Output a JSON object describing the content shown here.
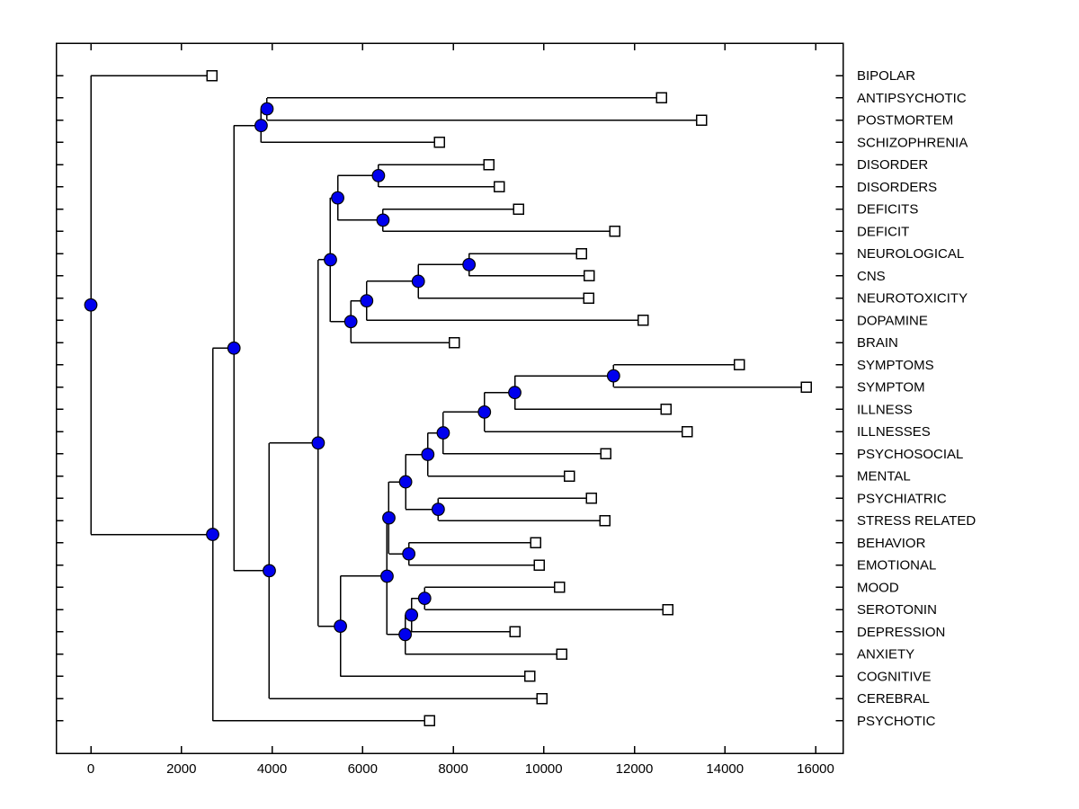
{
  "chart_data": {
    "type": "dendrogram",
    "subtype": "phylogenetic-tree",
    "orientation": "horizontal, root at left, leaves at right",
    "title": "",
    "xlabel": "",
    "ylabel": "",
    "grid": false,
    "legend": "none",
    "x_axis": {
      "ticks": [
        0,
        2000,
        4000,
        6000,
        8000,
        10000,
        12000,
        14000,
        16000
      ]
    },
    "markers": {
      "internal_node": "filled-circle",
      "leaf_node": "open-square"
    },
    "colors": {
      "branch_line": "#000000",
      "internal_node_fill": "#0000ee",
      "internal_node_edge": "#000000",
      "leaf_node_fill": "#ffffff",
      "leaf_node_edge": "#000000",
      "axis_box": "#000000",
      "text": "#000000",
      "background": "#ffffff"
    },
    "leaves_top_to_bottom": [
      {
        "label": "BIPOLAR",
        "distance": 2670
      },
      {
        "label": "ANTIPSYCHOTIC",
        "distance": 12600
      },
      {
        "label": "POSTMORTEM",
        "distance": 13480
      },
      {
        "label": "SCHIZOPHRENIA",
        "distance": 7700
      },
      {
        "label": "DISORDER",
        "distance": 8790
      },
      {
        "label": "DISORDERS",
        "distance": 9020
      },
      {
        "label": "DEFICITS",
        "distance": 9440
      },
      {
        "label": "DEFICIT",
        "distance": 11570
      },
      {
        "label": "NEUROLOGICAL",
        "distance": 10830
      },
      {
        "label": "CNS",
        "distance": 11000
      },
      {
        "label": "NEUROTOXICITY",
        "distance": 10990
      },
      {
        "label": "DOPAMINE",
        "distance": 12190
      },
      {
        "label": "BRAIN",
        "distance": 8020
      },
      {
        "label": "SYMPTOMS",
        "distance": 14320
      },
      {
        "label": "SYMPTOM",
        "distance": 15800
      },
      {
        "label": "ILLNESS",
        "distance": 12700
      },
      {
        "label": "ILLNESSES",
        "distance": 13170
      },
      {
        "label": "PSYCHOSOCIAL",
        "distance": 11370
      },
      {
        "label": "MENTAL",
        "distance": 10570
      },
      {
        "label": "PSYCHIATRIC",
        "distance": 11050
      },
      {
        "label": "STRESS RELATED",
        "distance": 11350
      },
      {
        "label": "BEHAVIOR",
        "distance": 9820
      },
      {
        "label": "EMOTIONAL",
        "distance": 9900
      },
      {
        "label": "MOOD",
        "distance": 10350
      },
      {
        "label": "SEROTONIN",
        "distance": 12740
      },
      {
        "label": "DEPRESSION",
        "distance": 9360
      },
      {
        "label": "ANXIETY",
        "distance": 10400
      },
      {
        "label": "COGNITIVE",
        "distance": 9690
      },
      {
        "label": "CEREBRAL",
        "distance": 9960
      },
      {
        "label": "PSYCHOTIC",
        "distance": 7480
      }
    ],
    "tree": {
      "d": 0,
      "children": [
        {
          "label": "BIPOLAR",
          "d": 2670
        },
        {
          "d": 2690,
          "children": [
            {
              "d": 3160,
              "children": [
                {
                  "d": 3760,
                  "children": [
                    {
                      "d": 3890,
                      "children": [
                        {
                          "label": "ANTIPSYCHOTIC",
                          "d": 12600
                        },
                        {
                          "label": "POSTMORTEM",
                          "d": 13480
                        }
                      ]
                    },
                    {
                      "label": "SCHIZOPHRENIA",
                      "d": 7700
                    }
                  ]
                },
                {
                  "d": 3940,
                  "children": [
                    {
                      "d": 5020,
                      "children": [
                        {
                          "d": 5290,
                          "children": [
                            {
                              "d": 5450,
                              "children": [
                                {
                                  "d": 6350,
                                  "children": [
                                    {
                                      "label": "DISORDER",
                                      "d": 8790
                                    },
                                    {
                                      "label": "DISORDERS",
                                      "d": 9020
                                    }
                                  ]
                                },
                                {
                                  "d": 6450,
                                  "children": [
                                    {
                                      "label": "DEFICITS",
                                      "d": 9440
                                    },
                                    {
                                      "label": "DEFICIT",
                                      "d": 11570
                                    }
                                  ]
                                }
                              ]
                            },
                            {
                              "d": 5740,
                              "children": [
                                {
                                  "d": 6090,
                                  "children": [
                                    {
                                      "d": 7230,
                                      "children": [
                                        {
                                          "d": 8350,
                                          "children": [
                                            {
                                              "label": "NEUROLOGICAL",
                                              "d": 10830
                                            },
                                            {
                                              "label": "CNS",
                                              "d": 11000
                                            }
                                          ]
                                        },
                                        {
                                          "label": "NEUROTOXICITY",
                                          "d": 10990
                                        }
                                      ]
                                    },
                                    {
                                      "label": "DOPAMINE",
                                      "d": 12190
                                    }
                                  ]
                                },
                                {
                                  "label": "BRAIN",
                                  "d": 8020
                                }
                              ]
                            }
                          ]
                        },
                        {
                          "d": 5510,
                          "children": [
                            {
                              "d": 6540,
                              "children": [
                                {
                                  "d": 6580,
                                  "children": [
                                    {
                                      "d": 6950,
                                      "children": [
                                        {
                                          "d": 7440,
                                          "children": [
                                            {
                                              "d": 7780,
                                              "children": [
                                                {
                                                  "d": 8690,
                                                  "children": [
                                                    {
                                                      "d": 9360,
                                                      "children": [
                                                        {
                                                          "d": 11540,
                                                          "children": [
                                                            {
                                                              "label": "SYMPTOMS",
                                                              "d": 14320
                                                            },
                                                            {
                                                              "label": "SYMPTOM",
                                                              "d": 15800
                                                            }
                                                          ]
                                                        },
                                                        {
                                                          "label": "ILLNESS",
                                                          "d": 12700
                                                        }
                                                      ]
                                                    },
                                                    {
                                                      "label": "ILLNESSES",
                                                      "d": 13170
                                                    }
                                                  ]
                                                },
                                                {
                                                  "label": "PSYCHOSOCIAL",
                                                  "d": 11370
                                                }
                                              ]
                                            },
                                            {
                                              "label": "MENTAL",
                                              "d": 10570
                                            }
                                          ]
                                        },
                                        {
                                          "d": 7670,
                                          "children": [
                                            {
                                              "label": "PSYCHIATRIC",
                                              "d": 11050
                                            },
                                            {
                                              "label": "STRESS RELATED",
                                              "d": 11350
                                            }
                                          ]
                                        }
                                      ]
                                    },
                                    {
                                      "d": 7020,
                                      "children": [
                                        {
                                          "label": "BEHAVIOR",
                                          "d": 9820
                                        },
                                        {
                                          "label": "EMOTIONAL",
                                          "d": 9900
                                        }
                                      ]
                                    }
                                  ]
                                },
                                {
                                  "d": 6940,
                                  "children": [
                                    {
                                      "d": 7080,
                                      "children": [
                                        {
                                          "d": 7370,
                                          "children": [
                                            {
                                              "label": "MOOD",
                                              "d": 10350
                                            },
                                            {
                                              "label": "SEROTONIN",
                                              "d": 12740
                                            }
                                          ]
                                        },
                                        {
                                          "label": "DEPRESSION",
                                          "d": 9360
                                        }
                                      ]
                                    },
                                    {
                                      "label": "ANXIETY",
                                      "d": 10400
                                    }
                                  ]
                                }
                              ]
                            },
                            {
                              "label": "COGNITIVE",
                              "d": 9690
                            }
                          ]
                        }
                      ]
                    },
                    {
                      "label": "CEREBRAL",
                      "d": 9960
                    }
                  ]
                }
              ]
            },
            {
              "label": "PSYCHOTIC",
              "d": 7480
            }
          ]
        }
      ]
    }
  }
}
